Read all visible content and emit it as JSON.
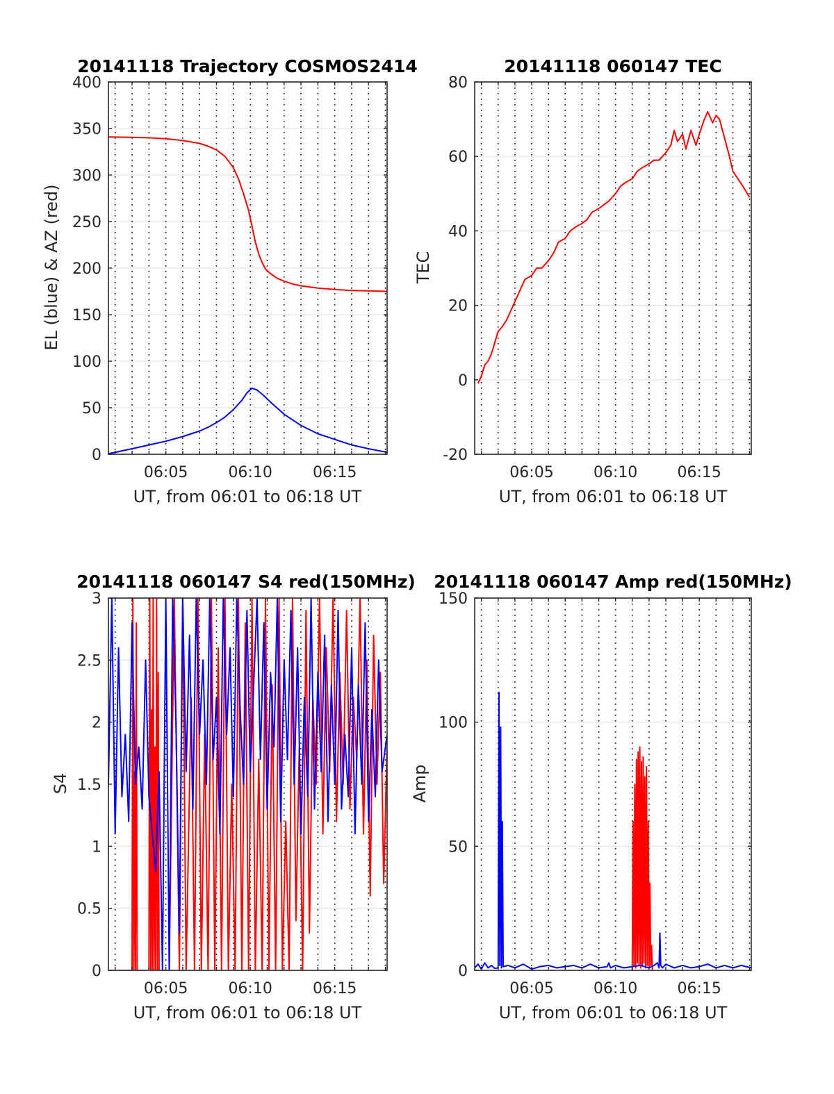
{
  "chart_data": [
    {
      "type": "line",
      "title": "20141118 Trajectory COSMOS2414",
      "xlabel": "UT, from 06:01 to 06:18 UT",
      "ylabel": "EL (blue) & AZ (red)",
      "x_unit": "minutes after 06:00 UT",
      "xlim": [
        6.0,
        6.3
      ],
      "xlim_minutes": [
        61.6,
        78.1
      ],
      "ylim": [
        0,
        400
      ],
      "yticks": [
        0,
        50,
        100,
        150,
        200,
        250,
        300,
        350,
        400
      ],
      "xticks": [
        "06:05",
        "06:10",
        "06:15"
      ],
      "xtick_minutes": [
        65,
        70,
        75
      ],
      "grid": "y solid light, x dotted every minute",
      "series": [
        {
          "name": "AZ",
          "color": "#ff0000",
          "x": [
            61.6,
            63,
            64,
            65,
            66,
            67,
            67.5,
            68,
            68.5,
            69,
            69.3,
            69.6,
            69.9,
            70.1,
            70.3,
            70.5,
            70.7,
            70.9,
            71.2,
            71.6,
            72,
            72.5,
            73,
            74,
            75,
            76,
            77,
            78.1
          ],
          "y": [
            341,
            340.5,
            340,
            339,
            337,
            334,
            331,
            327,
            320,
            308,
            296,
            280,
            262,
            245,
            228,
            215,
            206,
            199,
            194,
            189,
            186,
            183,
            181,
            178.5,
            177,
            176,
            175.5,
            175
          ]
        },
        {
          "name": "EL",
          "color": "#0000ff",
          "x": [
            61.6,
            63,
            64,
            65,
            66,
            67,
            67.5,
            68,
            68.5,
            69,
            69.5,
            69.8,
            70.1,
            70.4,
            70.8,
            71.2,
            72,
            72.5,
            73,
            74,
            75,
            76,
            77,
            78.1
          ],
          "y": [
            0.5,
            6,
            10,
            14,
            19,
            25,
            29,
            34,
            40,
            48,
            58,
            66,
            71,
            69,
            63,
            56,
            43,
            37,
            31,
            22,
            16,
            10,
            6,
            2
          ]
        }
      ]
    },
    {
      "type": "line",
      "title": "20141118 060147 TEC",
      "xlabel": "UT, from 06:01 to 06:18 UT",
      "ylabel": "TEC",
      "x_unit": "minutes after 06:00 UT",
      "xlim_minutes": [
        61.6,
        78.1
      ],
      "ylim": [
        -20,
        80
      ],
      "yticks": [
        -20,
        0,
        20,
        40,
        60,
        80
      ],
      "xticks": [
        "06:05",
        "06:10",
        "06:15"
      ],
      "xtick_minutes": [
        65,
        70,
        75
      ],
      "series": [
        {
          "color": "#ff0000",
          "x": [
            61.8,
            62.0,
            62.2,
            62.4,
            62.6,
            62.8,
            63.0,
            63.2,
            63.5,
            63.8,
            64.0,
            64.3,
            64.6,
            65.0,
            65.3,
            65.6,
            66.0,
            66.3,
            66.6,
            67.0,
            67.3,
            67.6,
            68.0,
            68.3,
            68.6,
            69.0,
            69.3,
            69.6,
            70.0,
            70.3,
            70.6,
            71.0,
            71.3,
            71.6,
            72.0,
            72.3,
            72.6,
            73.0,
            73.3,
            73.5,
            73.7,
            74.0,
            74.2,
            74.5,
            74.8,
            75.0,
            75.3,
            75.5,
            75.8,
            76.0,
            76.2,
            76.5,
            76.8,
            77.0,
            77.3,
            77.6,
            78.0
          ],
          "y": [
            -1,
            1,
            4,
            5,
            7,
            10,
            13,
            14,
            16,
            19,
            21,
            24,
            27,
            28,
            30,
            30,
            32,
            34,
            37,
            38,
            40,
            41,
            42,
            43,
            45,
            46,
            47,
            48,
            50,
            52,
            53,
            54,
            56,
            57,
            58,
            59,
            59,
            61,
            63,
            67,
            64,
            66,
            62,
            67,
            63,
            66,
            70,
            72,
            69,
            71,
            70,
            65,
            60,
            56,
            54,
            52,
            49
          ]
        }
      ]
    },
    {
      "type": "line",
      "title": "20141118 060147 S4 red(150MHz)",
      "xlabel": "UT, from 06:01 to 06:18 UT",
      "ylabel": "S4",
      "x_unit": "minutes after 06:00 UT",
      "xlim_minutes": [
        61.6,
        78.1
      ],
      "ylim": [
        0,
        3
      ],
      "yticks": [
        0,
        0.5,
        1,
        1.5,
        2,
        2.5,
        3
      ],
      "xticks": [
        "06:05",
        "06:10",
        "06:15"
      ],
      "xtick_minutes": [
        65,
        70,
        75
      ],
      "series": [
        {
          "name": "red(150MHz)",
          "color": "#ff0000",
          "x": [
            61.6,
            63.0,
            63.05,
            63.1,
            63.15,
            63.2,
            63.25,
            63.3,
            64.0,
            64.05,
            64.1,
            64.15,
            64.2,
            64.25,
            64.3,
            64.35,
            64.4,
            64.45,
            64.5,
            64.55,
            64.6,
            65.2,
            65.5,
            65.8,
            66.0,
            66.2,
            66.5,
            66.7,
            66.9,
            67.1,
            67.3,
            67.5,
            67.7,
            67.9,
            68.1,
            68.3,
            68.5,
            68.7,
            68.9,
            69.1,
            69.3,
            69.5,
            69.7,
            69.9,
            70.1,
            70.3,
            70.5,
            70.7,
            70.9,
            71.1,
            71.3,
            71.5,
            71.7,
            71.9,
            72.1,
            72.3,
            72.5,
            72.7,
            72.9,
            73.1,
            73.3,
            73.5,
            73.7,
            73.9,
            74.1,
            74.3,
            74.5,
            74.7,
            74.9,
            75.1,
            75.3,
            75.5,
            75.7,
            75.9,
            76.1,
            76.3,
            76.5,
            76.7,
            76.9,
            77.1,
            77.3,
            77.5,
            77.7,
            77.9,
            78.1
          ],
          "y": [
            0,
            0,
            3,
            0,
            1.6,
            0,
            2.8,
            0,
            0,
            3,
            0,
            2.1,
            0,
            3,
            0,
            1.8,
            0,
            3,
            0,
            2.4,
            0,
            0,
            3,
            0,
            3,
            0,
            2.2,
            0,
            3,
            0,
            1.9,
            0,
            3,
            0,
            2.6,
            0,
            3,
            0,
            1.5,
            0,
            3,
            0,
            2.8,
            0,
            3,
            0,
            1.7,
            0,
            3,
            0,
            2.3,
            0,
            3,
            0,
            1.2,
            0,
            3,
            0.4,
            1.8,
            0,
            2.9,
            0.3,
            2.2,
            1.5,
            3,
            1.1,
            2.6,
            1.6,
            3,
            1.2,
            2.4,
            1.5,
            2.9,
            1.3,
            2.2,
            1.7,
            3,
            1.1,
            2.5,
            0.6,
            2.7,
            1.5,
            2.4,
            0.7,
            1.8
          ]
        },
        {
          "color": "#0000ff",
          "x": [
            61.6,
            61.8,
            62.0,
            62.2,
            62.4,
            62.6,
            62.8,
            63.0,
            63.2,
            63.4,
            63.6,
            63.8,
            64.0,
            64.2,
            64.4,
            64.6,
            64.8,
            65.0,
            65.2,
            65.4,
            65.6,
            65.8,
            66.0,
            66.2,
            66.4,
            66.6,
            66.8,
            67.0,
            67.2,
            67.4,
            67.6,
            67.8,
            68.0,
            68.2,
            68.4,
            68.6,
            68.8,
            69.0,
            69.2,
            69.4,
            69.6,
            69.8,
            70.0,
            70.2,
            70.4,
            70.6,
            70.8,
            71.0,
            71.2,
            71.4,
            71.6,
            71.8,
            72.0,
            72.2,
            72.4,
            72.6,
            72.8,
            73.0,
            73.2,
            73.4,
            73.6,
            73.8,
            74.0,
            74.2,
            74.4,
            74.6,
            74.8,
            75.0,
            75.2,
            75.4,
            75.6,
            75.8,
            76.0,
            76.2,
            76.4,
            76.6,
            76.8,
            77.0,
            77.2,
            77.4,
            77.6,
            77.8,
            78.1
          ],
          "y": [
            1.5,
            3,
            1.1,
            2.6,
            1.4,
            1.9,
            1.2,
            2.8,
            1.5,
            1.8,
            1.3,
            2.5,
            1.4,
            1.1,
            0.8,
            1.6,
            0,
            3,
            0,
            3,
            2,
            0.3,
            3,
            1.6,
            2.7,
            1.3,
            3,
            1.9,
            2.5,
            1.5,
            3,
            1.7,
            2.2,
            1.1,
            3,
            1.9,
            2.6,
            1.4,
            3,
            2.1,
            1.5,
            2.9,
            1.6,
            2.3,
            3,
            1.7,
            2.8,
            1.3,
            2.4,
            1.8,
            3,
            1.2,
            2.5,
            1.7,
            2.9,
            1.5,
            2.6,
            1.1,
            2.2,
            1.4,
            3,
            1.3,
            2.4,
            1.6,
            2.7,
            1.2,
            2.3,
            1.5,
            2.9,
            1.3,
            1.9,
            1.4,
            2.6,
            1.1,
            2.3,
            1.5,
            2.8,
            1.2,
            2.1,
            1.4,
            2.5,
            1.6,
            1.9
          ]
        }
      ]
    },
    {
      "type": "line",
      "title": "20141118 060147 Amp red(150MHz)",
      "xlabel": "UT, from 06:01 to 06:18 UT",
      "ylabel": "Amp",
      "x_unit": "minutes after 06:00 UT",
      "xlim_minutes": [
        61.6,
        78.1
      ],
      "ylim": [
        0,
        150
      ],
      "yticks": [
        0,
        50,
        100,
        150
      ],
      "xticks": [
        "06:05",
        "06:10",
        "06:15"
      ],
      "xtick_minutes": [
        65,
        70,
        75
      ],
      "series": [
        {
          "name": "red(150MHz)",
          "color": "#ff0000",
          "x": [
            71.0,
            71.05,
            71.1,
            71.15,
            71.2,
            71.25,
            71.3,
            71.35,
            71.4,
            71.45,
            71.5,
            71.55,
            71.6,
            71.65,
            71.7,
            71.75,
            71.8,
            71.85,
            71.9,
            71.95,
            72.0,
            72.05,
            72.1,
            72.15,
            72.2
          ],
          "y": [
            0,
            60,
            2,
            75,
            1,
            85,
            3,
            88,
            2,
            90,
            1,
            84,
            2,
            86,
            3,
            78,
            1,
            82,
            2,
            60,
            1,
            35,
            2,
            10,
            0
          ]
        },
        {
          "color": "#0000ff",
          "x": [
            61.6,
            61.8,
            62.0,
            62.2,
            62.4,
            62.6,
            62.8,
            63.0,
            63.05,
            63.1,
            63.15,
            63.2,
            63.25,
            63.3,
            63.6,
            64.0,
            64.5,
            65.0,
            65.5,
            66.0,
            66.5,
            67.0,
            67.5,
            68.0,
            68.5,
            69.0,
            69.5,
            69.6,
            69.7,
            70.0,
            70.5,
            71.0,
            71.5,
            72.0,
            72.3,
            72.5,
            72.6,
            72.65,
            72.7,
            72.8,
            73.0,
            73.5,
            74.0,
            74.5,
            75.0,
            75.5,
            76.0,
            76.5,
            77.0,
            77.5,
            78.1
          ],
          "y": [
            1,
            2.5,
            0.5,
            3,
            1,
            2,
            0.8,
            1,
            112,
            2,
            98,
            1,
            60,
            1.5,
            2,
            1,
            2.5,
            0.5,
            1.5,
            2,
            1,
            1.5,
            2,
            1,
            2.5,
            1,
            1.5,
            3,
            1,
            2,
            1,
            1.5,
            2,
            1,
            2,
            3,
            1,
            15,
            2,
            1,
            2.5,
            1,
            2,
            1,
            1.5,
            2.5,
            1,
            2,
            1,
            2,
            1
          ]
        }
      ]
    }
  ]
}
